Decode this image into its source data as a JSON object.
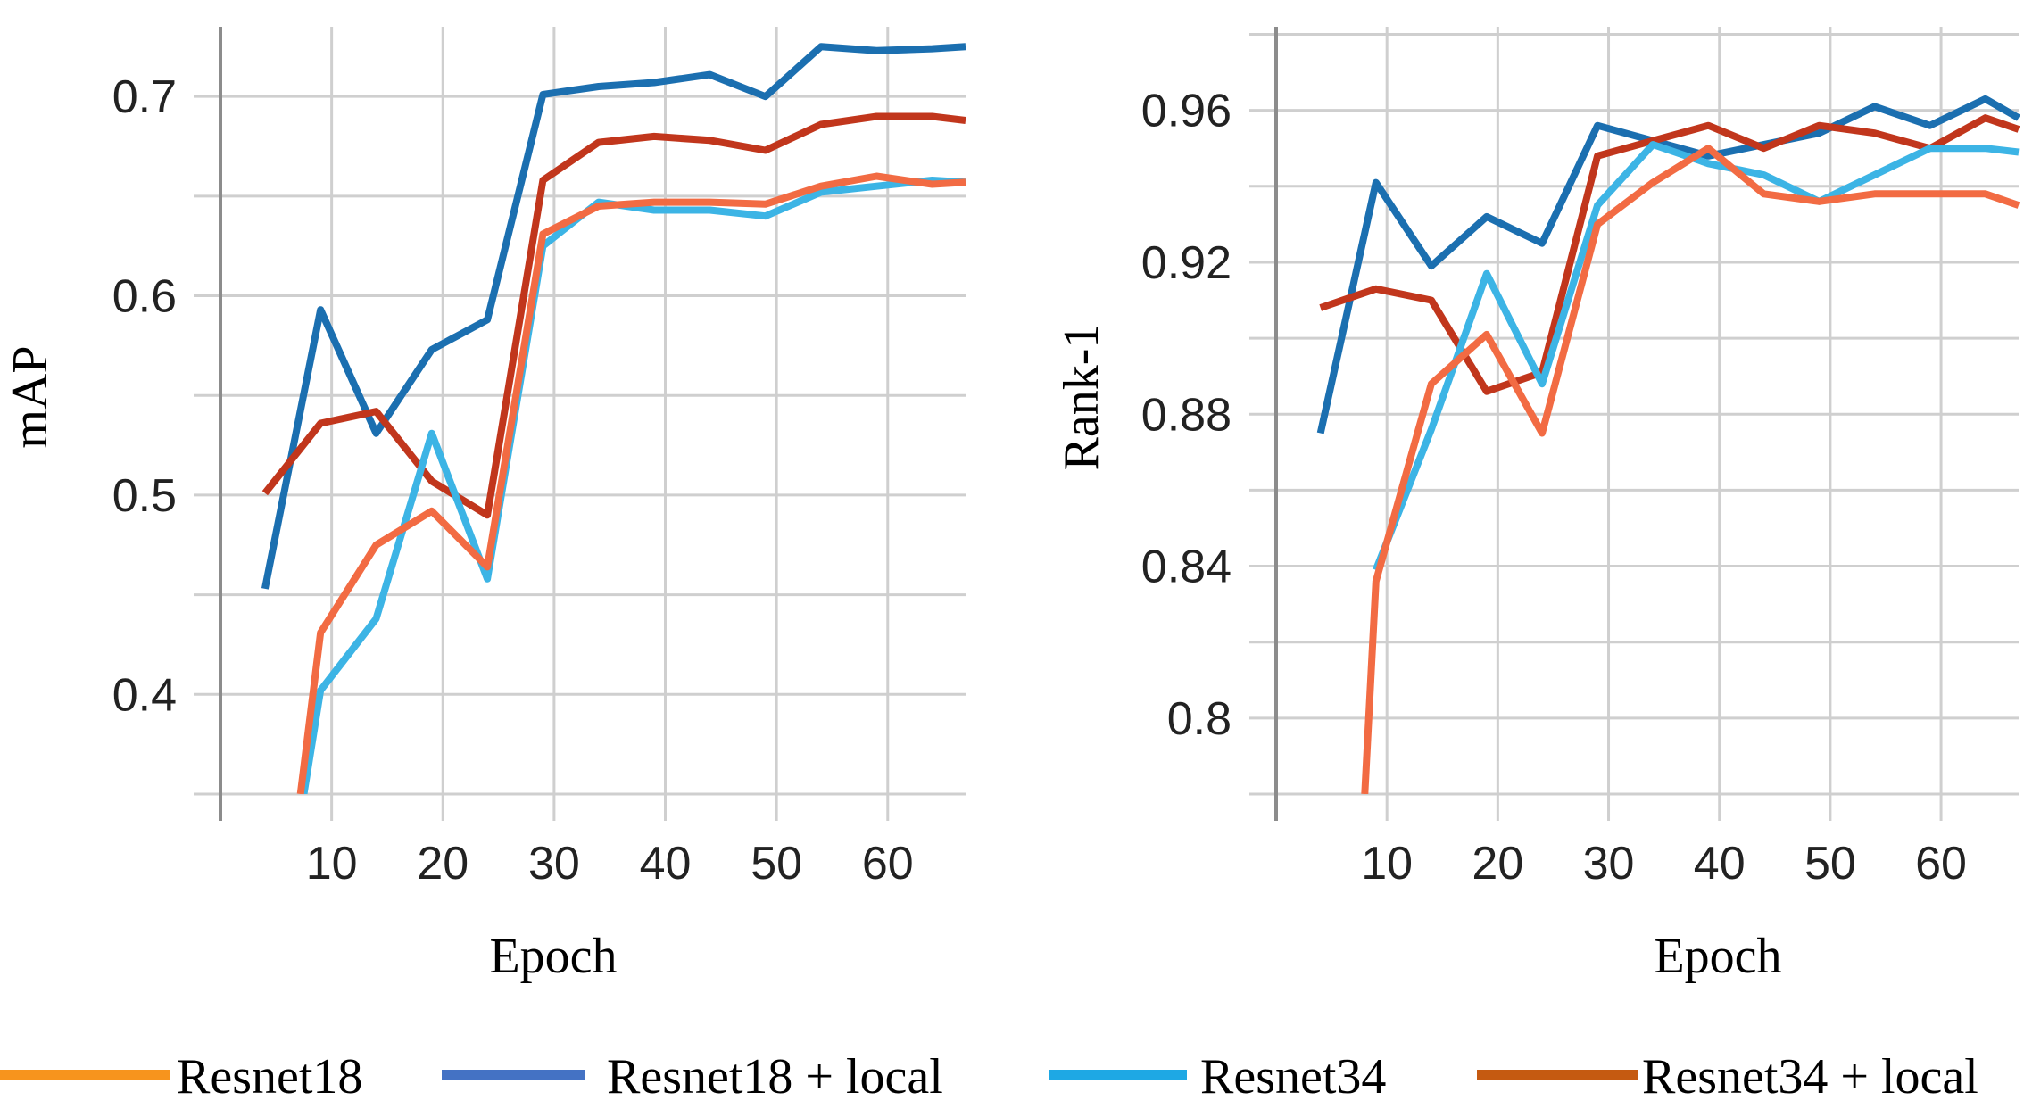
{
  "chart_data": [
    {
      "type": "line",
      "title": "",
      "xlabel": "Epoch",
      "ylabel": "mAP",
      "xlim": [
        0,
        67
      ],
      "ylim": [
        0.35,
        0.735
      ],
      "xticks": [
        10,
        20,
        30,
        40,
        50,
        60
      ],
      "xtick_labels": [
        "10",
        "20",
        "30",
        "40",
        "50",
        "60"
      ],
      "yticks": [
        0.4,
        0.5,
        0.6,
        0.7
      ],
      "ytick_labels": [
        "0.4",
        "0.5",
        "0.6",
        "0.7"
      ],
      "minor_ygrid": [
        0.35,
        0.45,
        0.55,
        0.65
      ],
      "series": [
        {
          "name": "Resnet18 + local",
          "color": "#1b6fb0",
          "x": [
            4,
            9,
            14,
            19,
            24,
            29,
            34,
            39,
            44,
            49,
            54,
            59,
            64,
            67
          ],
          "y": [
            0.453,
            0.593,
            0.531,
            0.573,
            0.588,
            0.701,
            0.705,
            0.707,
            0.711,
            0.7,
            0.725,
            0.723,
            0.724,
            0.725
          ]
        },
        {
          "name": "Resnet34 + local",
          "color": "#c1361c",
          "x": [
            4,
            9,
            14,
            19,
            24,
            29,
            34,
            39,
            44,
            49,
            54,
            59,
            64,
            67
          ],
          "y": [
            0.501,
            0.536,
            0.542,
            0.507,
            0.49,
            0.658,
            0.677,
            0.68,
            0.678,
            0.673,
            0.686,
            0.69,
            0.69,
            0.688
          ]
        },
        {
          "name": "Resnet34",
          "color": "#3cb4e5",
          "x": [
            7.5,
            9,
            14,
            19,
            24,
            29,
            34,
            39,
            44,
            49,
            54,
            59,
            64,
            67
          ],
          "y": [
            0.35,
            0.402,
            0.438,
            0.531,
            0.458,
            0.625,
            0.647,
            0.643,
            0.643,
            0.64,
            0.652,
            0.655,
            0.658,
            0.657
          ]
        },
        {
          "name": "Resnet18",
          "color": "#f26b43",
          "x": [
            7.2,
            9,
            14,
            19,
            24,
            29,
            34,
            39,
            44,
            49,
            54,
            59,
            64,
            67
          ],
          "y": [
            0.35,
            0.431,
            0.475,
            0.492,
            0.464,
            0.631,
            0.645,
            0.647,
            0.647,
            0.646,
            0.655,
            0.66,
            0.656,
            0.657
          ]
        }
      ]
    },
    {
      "type": "line",
      "title": "",
      "xlabel": "Epoch",
      "ylabel": "Rank-1",
      "xlim": [
        0,
        67
      ],
      "ylim": [
        0.78,
        0.982
      ],
      "xticks": [
        10,
        20,
        30,
        40,
        50,
        60
      ],
      "xtick_labels": [
        "10",
        "20",
        "30",
        "40",
        "50",
        "60"
      ],
      "yticks": [
        0.8,
        0.84,
        0.88,
        0.92,
        0.96
      ],
      "ytick_labels": [
        "0.8",
        "0.84",
        "0.88",
        "0.92",
        "0.96"
      ],
      "minor_ygrid": [
        0.78,
        0.82,
        0.86,
        0.9,
        0.94,
        0.98
      ],
      "series": [
        {
          "name": "Resnet18 + local",
          "color": "#1b6fb0",
          "x": [
            4,
            9,
            14,
            19,
            24,
            29,
            34,
            39,
            44,
            49,
            54,
            59,
            64,
            67
          ],
          "y": [
            0.875,
            0.941,
            0.919,
            0.932,
            0.925,
            0.956,
            0.952,
            0.948,
            0.951,
            0.954,
            0.961,
            0.956,
            0.963,
            0.958
          ]
        },
        {
          "name": "Resnet34 + local",
          "color": "#c1361c",
          "x": [
            4,
            9,
            14,
            19,
            24,
            29,
            34,
            39,
            44,
            49,
            54,
            59,
            64,
            67
          ],
          "y": [
            0.908,
            0.913,
            0.91,
            0.886,
            0.891,
            0.948,
            0.952,
            0.956,
            0.95,
            0.956,
            0.954,
            0.95,
            0.958,
            0.955
          ]
        },
        {
          "name": "Resnet34",
          "color": "#3cb4e5",
          "x": [
            9,
            14,
            19,
            24,
            29,
            34,
            39,
            44,
            49,
            54,
            59,
            64,
            67
          ],
          "y": [
            0.839,
            0.876,
            0.917,
            0.888,
            0.935,
            0.951,
            0.946,
            0.943,
            0.936,
            0.943,
            0.95,
            0.95,
            0.949
          ]
        },
        {
          "name": "Resnet18",
          "color": "#f26b43",
          "x": [
            8,
            9,
            14,
            19,
            24,
            29,
            34,
            39,
            44,
            49,
            54,
            59,
            64,
            67
          ],
          "y": [
            0.78,
            0.836,
            0.888,
            0.901,
            0.875,
            0.93,
            0.941,
            0.95,
            0.938,
            0.936,
            0.938,
            0.938,
            0.938,
            0.935
          ]
        }
      ]
    }
  ],
  "legend": [
    {
      "label": "Resnet18",
      "color": "#f7941d"
    },
    {
      "label": "Resnet18 + local",
      "color": "#4472c4"
    },
    {
      "label": "Resnet34",
      "color": "#1ea8e4"
    },
    {
      "label": "Resnet34 + local",
      "color": "#c55a11"
    }
  ]
}
